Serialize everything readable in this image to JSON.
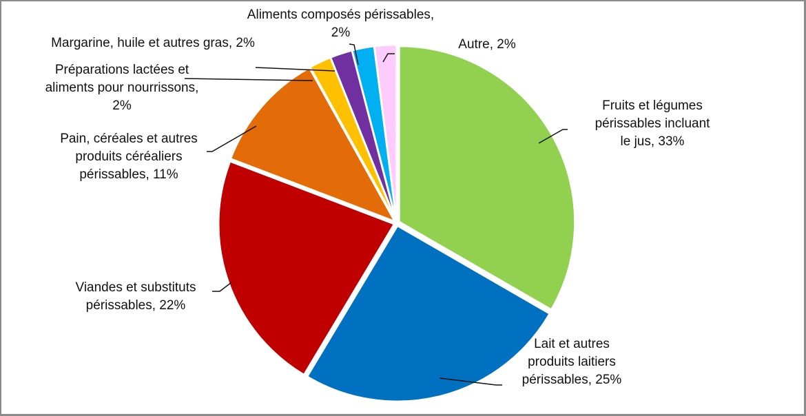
{
  "chart_data": {
    "type": "pie",
    "title": "",
    "start_angle_deg": 0,
    "direction": "clockwise",
    "slices": [
      {
        "label": "Fruits et légumes périssables incluant le jus",
        "value": 33,
        "color": "#92D050"
      },
      {
        "label": "Lait et autres produits laitiers périssables",
        "value": 25,
        "color": "#0070C0"
      },
      {
        "label": "Viandes et substituts périssables",
        "value": 22,
        "color": "#C00000"
      },
      {
        "label": "Pain, céréales et autres produits céréaliers périssables",
        "value": 11,
        "color": "#E36C09"
      },
      {
        "label": "Préparations lactées et aliments pour nourrissons",
        "value": 2,
        "color": "#FFC000"
      },
      {
        "label": "Margarine, huile et autres gras",
        "value": 2,
        "color": "#7030A0"
      },
      {
        "label": "Aliments composés périssables",
        "value": 2,
        "color": "#00B0F0"
      },
      {
        "label": "Autre",
        "value": 2,
        "color": "#FFCCFF"
      }
    ],
    "legend": "none (data labels with leader lines)"
  },
  "labels": {
    "fruits": "Fruits et légumes\npérissables incluant\nle jus, 33%",
    "lait": "Lait et autres\nproduits laitiers\npérissables, 25%",
    "viandes": "Viandes et substituts\npérissables, 22%",
    "pain": "Pain, céréales et autres\nproduits céréaliers\npérissables, 11%",
    "preparations": "Préparations lactées et\naliments pour nourrissons,\n2%",
    "margarine": "Margarine, huile et autres gras, 2%",
    "composes": "Aliments composés périssables,\n2%",
    "autre": "Autre, 2%"
  }
}
